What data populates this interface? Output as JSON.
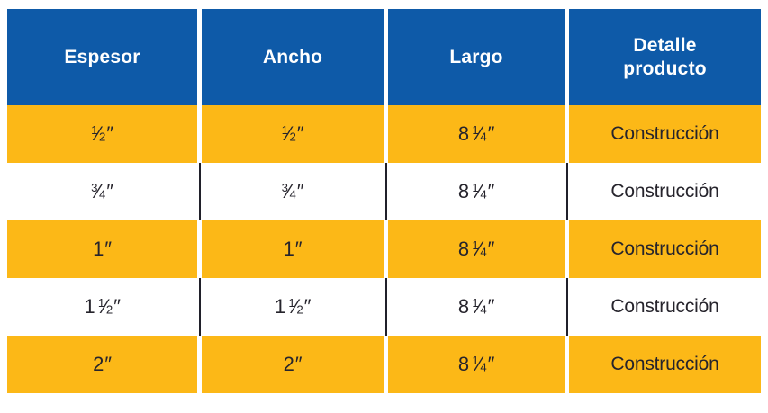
{
  "colors": {
    "header_bg": "#0e5aa8",
    "header_text": "#ffffff",
    "row_yellow": "#fcb817",
    "text_dark": "#26242c",
    "rule_dark": "#20202a"
  },
  "table": {
    "unit_symbol": "″",
    "columns": [
      {
        "label": "Espesor"
      },
      {
        "label": "Ancho"
      },
      {
        "label": "Largo"
      },
      {
        "label": "Detalle\nproducto"
      }
    ],
    "rows": [
      {
        "espesor": {
          "num": "1",
          "den": "2"
        },
        "ancho": {
          "num": "1",
          "den": "2"
        },
        "largo": {
          "whole": "8",
          "num": "1",
          "den": "4"
        },
        "detalle": "Construcción"
      },
      {
        "espesor": {
          "num": "3",
          "den": "4"
        },
        "ancho": {
          "num": "3",
          "den": "4"
        },
        "largo": {
          "whole": "8",
          "num": "1",
          "den": "4"
        },
        "detalle": "Construcción"
      },
      {
        "espesor": {
          "whole": "1"
        },
        "ancho": {
          "whole": "1"
        },
        "largo": {
          "whole": "8",
          "num": "1",
          "den": "4"
        },
        "detalle": "Construcción"
      },
      {
        "espesor": {
          "whole": "1",
          "num": "1",
          "den": "2"
        },
        "ancho": {
          "whole": "1",
          "num": "1",
          "den": "2"
        },
        "largo": {
          "whole": "8",
          "num": "1",
          "den": "4"
        },
        "detalle": "Construcción"
      },
      {
        "espesor": {
          "whole": "2"
        },
        "ancho": {
          "whole": "2"
        },
        "largo": {
          "whole": "8",
          "num": "1",
          "den": "4"
        },
        "detalle": "Construcción"
      }
    ]
  }
}
